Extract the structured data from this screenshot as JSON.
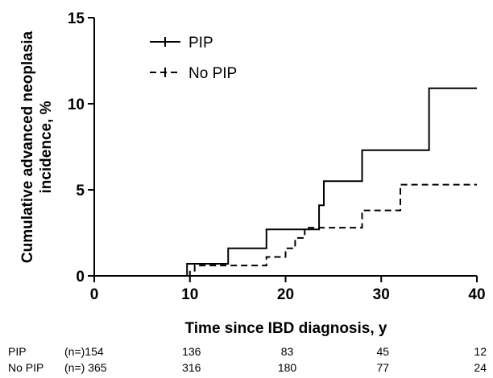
{
  "chart_data": {
    "type": "line",
    "title": "",
    "xlabel": "Time since IBD diagnosis, y",
    "ylabel_lines": [
      "Cumulative advanced neoplasia",
      "incidence, %"
    ],
    "xlim": [
      0,
      40
    ],
    "ylim": [
      0,
      15
    ],
    "x_ticks": [
      0,
      10,
      20,
      30,
      40
    ],
    "y_ticks": [
      0,
      5,
      10,
      15
    ],
    "x_tick_labels": [
      "0",
      "10",
      "20",
      "30",
      "40"
    ],
    "y_tick_labels": [
      "0",
      "5",
      "10",
      "15"
    ],
    "grid": false,
    "legend_position": "top-left",
    "series": [
      {
        "name": "PIP",
        "style": "solid",
        "color": "#000000",
        "x": [
          0,
          9.7,
          14,
          18,
          23.5,
          24,
          28,
          35,
          40
        ],
        "y": [
          0,
          0.7,
          1.6,
          2.7,
          4.1,
          5.5,
          7.3,
          10.9,
          10.9
        ]
      },
      {
        "name": "No PIP",
        "style": "dashed",
        "color": "#000000",
        "x": [
          0,
          10,
          10.5,
          18,
          20,
          21,
          22,
          24,
          28,
          32,
          40
        ],
        "y": [
          0,
          0.3,
          0.6,
          1.1,
          1.6,
          2.2,
          2.8,
          2.8,
          3.8,
          5.3,
          5.3
        ]
      }
    ],
    "at_risk": {
      "rows": [
        {
          "label": "PIP",
          "n_label": "(n=)154",
          "counts": [
            "136",
            "83",
            "45",
            "12"
          ]
        },
        {
          "label": "No PIP",
          "n_label": "(n=) 365",
          "counts": [
            "316",
            "180",
            "77",
            "24"
          ]
        }
      ],
      "x": [
        10,
        20,
        30,
        40
      ]
    }
  }
}
